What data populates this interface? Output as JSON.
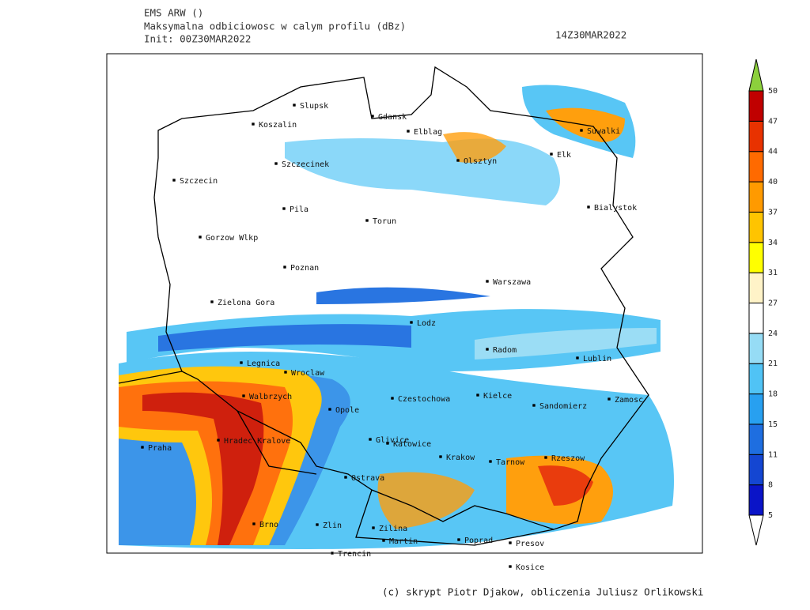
{
  "header": {
    "lines": [
      "EMS ARW ()",
      "Maksymalna odbiciowosc w calym profilu (dBz)",
      "Init: 00Z30MAR2022"
    ],
    "valid_time": "14Z30MAR2022"
  },
  "cities": [
    "Slupsk",
    "Koszalin",
    "Gdansk",
    "Elblag",
    "Szczecinek",
    "Olsztyn",
    "Suwalki",
    "Elk",
    "Szczecin",
    "Pila",
    "Torun",
    "Bialystok",
    "Gorzow Wlkp",
    "Poznan",
    "Warszawa",
    "Zielona Gora",
    "Lodz",
    "Radom",
    "Lublin",
    "Legnica",
    "Wroclaw",
    "Walbrzych",
    "Czestochowa",
    "Kielce",
    "Zamosc",
    "Opole",
    "Sandomierz",
    "Hradec Kralove",
    "Praha",
    "Glivice",
    "Katowice",
    "Krakow",
    "Tarnow",
    "Rzeszow",
    "Ostrava",
    "Brno",
    "Zlin",
    "Zilina",
    "Martin",
    "Poprad",
    "Presov",
    "Trencin",
    "Kosice"
  ],
  "colorbar": {
    "levels": [
      5,
      8,
      11,
      15,
      18,
      21,
      24,
      27,
      31,
      34,
      37,
      40,
      44,
      47,
      50
    ],
    "colors": [
      "#0a14c8",
      "#1446d2",
      "#1e6ee0",
      "#28a0f0",
      "#50c3f5",
      "#96dcf5",
      "#ffffff",
      "#fff3c8",
      "#ffff00",
      "#ffc400",
      "#ff9a00",
      "#ff6a00",
      "#e83200",
      "#c00000"
    ],
    "under_color": "#ffffff",
    "over_color": "#8cd03c"
  },
  "credit": "(c) skrypt Piotr Djakow, obliczenia Juliusz Orlikowski"
}
